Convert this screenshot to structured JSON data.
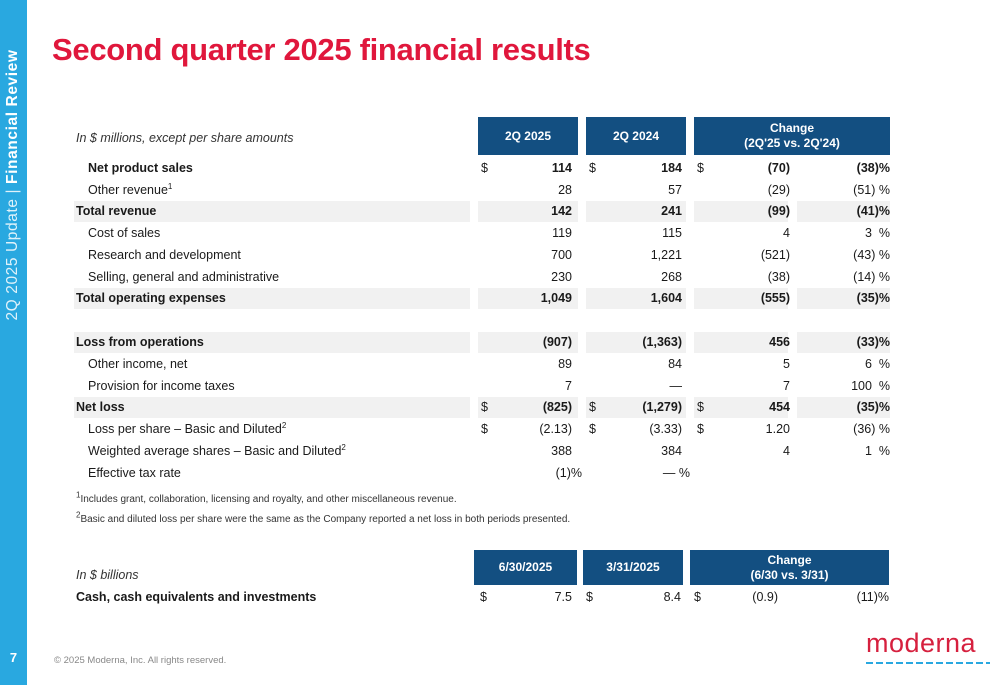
{
  "sidebar": {
    "section_light": "2Q 2025 Update | ",
    "section_bold": "Financial Review",
    "page_number": "7",
    "color": "#29a8e0"
  },
  "title": "Second quarter 2025 financial results",
  "income_table": {
    "caption": "In $ millions, except per share amounts",
    "headers": {
      "col1": "2Q 2025",
      "col2": "2Q 2024",
      "change_line1": "Change",
      "change_line2": "(2Q'25 vs. 2Q'24)"
    },
    "rows": [
      {
        "label": "Net product sales",
        "sup": "",
        "bold": true,
        "indent": true,
        "shaded": false,
        "d1": "$",
        "v1": "114",
        "d2": "$",
        "v2": "184",
        "d3": "$",
        "v3": "(70)",
        "pct": "(38)%"
      },
      {
        "label": "Other revenue",
        "sup": "1",
        "bold": false,
        "indent": true,
        "shaded": false,
        "d1": "",
        "v1": "28",
        "d2": "",
        "v2": "57",
        "d3": "",
        "v3": "(29)",
        "pct": "(51) %"
      },
      {
        "label": "Total revenue",
        "sup": "",
        "bold": true,
        "indent": false,
        "shaded": true,
        "d1": "",
        "v1": "142",
        "d2": "",
        "v2": "241",
        "d3": "",
        "v3": "(99)",
        "pct": "(41)%"
      },
      {
        "label": "Cost of sales",
        "sup": "",
        "bold": false,
        "indent": true,
        "shaded": false,
        "d1": "",
        "v1": "119",
        "d2": "",
        "v2": "115",
        "d3": "",
        "v3": "4",
        "pct": "3  %"
      },
      {
        "label": "Research and development",
        "sup": "",
        "bold": false,
        "indent": true,
        "shaded": false,
        "d1": "",
        "v1": "700",
        "d2": "",
        "v2": "1,221",
        "d3": "",
        "v3": "(521)",
        "pct": "(43) %"
      },
      {
        "label": "Selling, general and administrative",
        "sup": "",
        "bold": false,
        "indent": true,
        "shaded": false,
        "d1": "",
        "v1": "230",
        "d2": "",
        "v2": "268",
        "d3": "",
        "v3": "(38)",
        "pct": "(14) %"
      },
      {
        "label": "Total operating expenses",
        "sup": "",
        "bold": true,
        "indent": false,
        "shaded": true,
        "d1": "",
        "v1": "1,049",
        "d2": "",
        "v2": "1,604",
        "d3": "",
        "v3": "(555)",
        "pct": "(35)%"
      },
      {
        "label": "Loss from operations",
        "sup": "",
        "bold": true,
        "indent": false,
        "shaded": true,
        "d1": "",
        "v1": "(907)",
        "d2": "",
        "v2": "(1,363)",
        "d3": "",
        "v3": "456",
        "pct": "(33)%"
      },
      {
        "label": "Other income, net",
        "sup": "",
        "bold": false,
        "indent": true,
        "shaded": false,
        "d1": "",
        "v1": "89",
        "d2": "",
        "v2": "84",
        "d3": "",
        "v3": "5",
        "pct": "6  %"
      },
      {
        "label": "Provision for income taxes",
        "sup": "",
        "bold": false,
        "indent": true,
        "shaded": false,
        "d1": "",
        "v1": "7",
        "d2": "",
        "v2": "—",
        "d3": "",
        "v3": "7",
        "pct": "100  %"
      },
      {
        "label": "Net loss",
        "sup": "",
        "bold": true,
        "indent": false,
        "shaded": true,
        "d1": "$",
        "v1": "(825)",
        "d2": "$",
        "v2": "(1,279)",
        "d3": "$",
        "v3": "454",
        "pct": "(35)%"
      },
      {
        "label": "Loss per share – Basic and Diluted",
        "sup": "2",
        "bold": false,
        "indent": true,
        "shaded": false,
        "d1": "$",
        "v1": "(2.13)",
        "d2": "$",
        "v2": "(3.33)",
        "d3": "$",
        "v3": "1.20",
        "pct": "(36) %"
      },
      {
        "label": "Weighted average shares – Basic and Diluted",
        "sup": "2",
        "bold": false,
        "indent": true,
        "shaded": false,
        "d1": "",
        "v1": "388",
        "d2": "",
        "v2": "384",
        "d3": "",
        "v3": "4",
        "pct": "1  %"
      },
      {
        "label": "Effective tax rate",
        "sup": "",
        "bold": false,
        "indent": true,
        "shaded": false,
        "d1": "",
        "v1": "(1)%",
        "d2": "",
        "v2": "— %",
        "d3": "",
        "v3": "",
        "pct": ""
      }
    ]
  },
  "footnotes": [
    {
      "mark": "1",
      "text": "Includes grant, collaboration, licensing and royalty, and other miscellaneous revenue."
    },
    {
      "mark": "2",
      "text": "Basic and diluted loss per share were the same as the Company reported a net loss in both periods presented."
    }
  ],
  "cash_table": {
    "caption": "In $ billions",
    "headers": {
      "col1": "6/30/2025",
      "col2": "3/31/2025",
      "change_line1": "Change",
      "change_line2": "(6/30 vs. 3/31)"
    },
    "row": {
      "label": "Cash, cash equivalents and investments",
      "d1": "$",
      "v1": "7.5",
      "d2": "$",
      "v2": "8.4",
      "d3": "$",
      "v3": "(0.9)",
      "pct": "(11)%"
    }
  },
  "footer": {
    "copyright": "© 2025 Moderna, Inc. All rights reserved.",
    "logo_text": "moderna"
  },
  "colors": {
    "title_red": "#e0173c",
    "header_blue": "#134f81",
    "sidebar_blue": "#29a8e0",
    "row_shade": "#f1f1f1"
  }
}
